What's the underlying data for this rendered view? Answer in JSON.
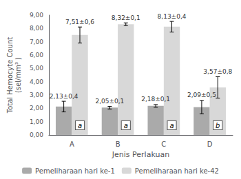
{
  "chart_data": {
    "type": "bar",
    "categories": [
      "A",
      "B",
      "C",
      "D"
    ],
    "series": [
      {
        "name": "Pemeliharaan hari ke-1",
        "color": "#aaaaaa",
        "values": [
          2.13,
          2.05,
          2.18,
          2.09
        ],
        "errors": [
          0.4,
          0.1,
          0.1,
          0.5
        ],
        "value_labels": [
          "2,13±0,4",
          "2,05±0,1",
          "2,18±0,1",
          "2,09±0,5"
        ]
      },
      {
        "name": "Pemeliharaan hari ke-42",
        "color": "#d8d8d8",
        "values": [
          7.51,
          8.32,
          8.13,
          3.57
        ],
        "errors": [
          0.6,
          0.1,
          0.4,
          0.8
        ],
        "value_labels": [
          "7,51±0,6",
          "8,32±0,1",
          "8,13±0,4",
          "3,57±0,8"
        ],
        "letters": [
          "a",
          "a",
          "a",
          "b"
        ]
      }
    ],
    "xlabel": "Jenis Perlakuan",
    "ylabel": "Total Hemocyte Count\n(sel/mm³ )",
    "ylim": [
      0,
      9.0
    ],
    "yticks": [
      {
        "value": 0.0,
        "label": "0,00"
      },
      {
        "value": 1.0,
        "label": "1,00"
      },
      {
        "value": 2.0,
        "label": "2,00"
      },
      {
        "value": 3.0,
        "label": "3,00"
      },
      {
        "value": 4.0,
        "label": "4,00"
      },
      {
        "value": 5.0,
        "label": "5,00"
      },
      {
        "value": 6.0,
        "label": "6,00"
      },
      {
        "value": 7.0,
        "label": "7,00"
      },
      {
        "value": 8.0,
        "label": "8,00"
      },
      {
        "value": 9.0,
        "label": "9,00"
      }
    ],
    "legend": "bottom",
    "data_labels": true
  }
}
